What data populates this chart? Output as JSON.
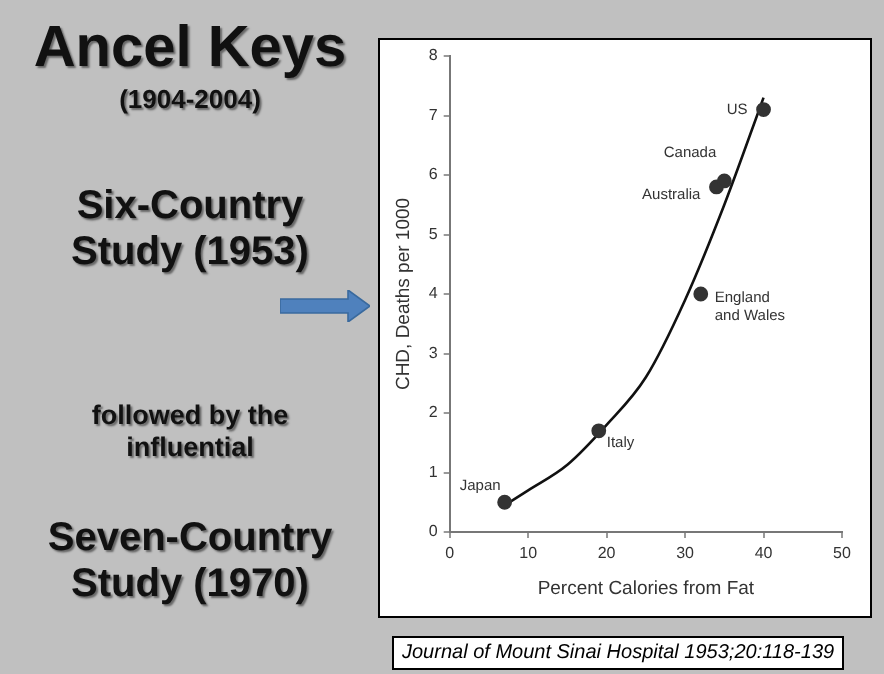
{
  "chart_data": {
    "type": "scatter",
    "title": "Ancel Keys",
    "subtitle": "(1904-2004)",
    "xlabel": "Percent Calories from Fat",
    "ylabel": "CHD, Deaths per 1000",
    "xlim": [
      0,
      50
    ],
    "xticks": [
      0,
      10,
      20,
      30,
      40,
      50
    ],
    "ylim": [
      0,
      8
    ],
    "yticks": [
      0,
      1,
      2,
      3,
      4,
      5,
      6,
      7,
      8
    ],
    "grid": false,
    "legend": false,
    "marker": "circle",
    "series": [
      {
        "color": "#333333",
        "x": [
          7,
          19,
          32,
          34,
          35,
          40
        ],
        "values": [
          0.5,
          1.7,
          4.0,
          5.8,
          5.9,
          7.1
        ]
      },
      {
        "type": "line",
        "color": "#111111",
        "marker": "none",
        "x": [
          7,
          10,
          15,
          20,
          25,
          30,
          35,
          40
        ],
        "values": [
          0.45,
          0.7,
          1.13,
          1.8,
          2.6,
          3.9,
          5.5,
          7.3
        ]
      }
    ],
    "annotations": [
      "Six-Country Study (1953)",
      "followed by the influential",
      "Seven-Country Study (1970)",
      "Journal of Mount Sinai Hospital 1953;20:118-139",
      {
        "text": "Japan",
        "x": 7,
        "y": 0.5
      },
      {
        "text": "Italy",
        "x": 19,
        "y": 1.7
      },
      {
        "text": "England and Wales",
        "x": 32,
        "y": 4.0
      },
      {
        "text": "Australia",
        "x": 34,
        "y": 5.8
      },
      {
        "text": "Canada",
        "x": 35,
        "y": 5.9
      },
      {
        "text": "US",
        "x": 40,
        "y": 7.1
      }
    ]
  }
}
